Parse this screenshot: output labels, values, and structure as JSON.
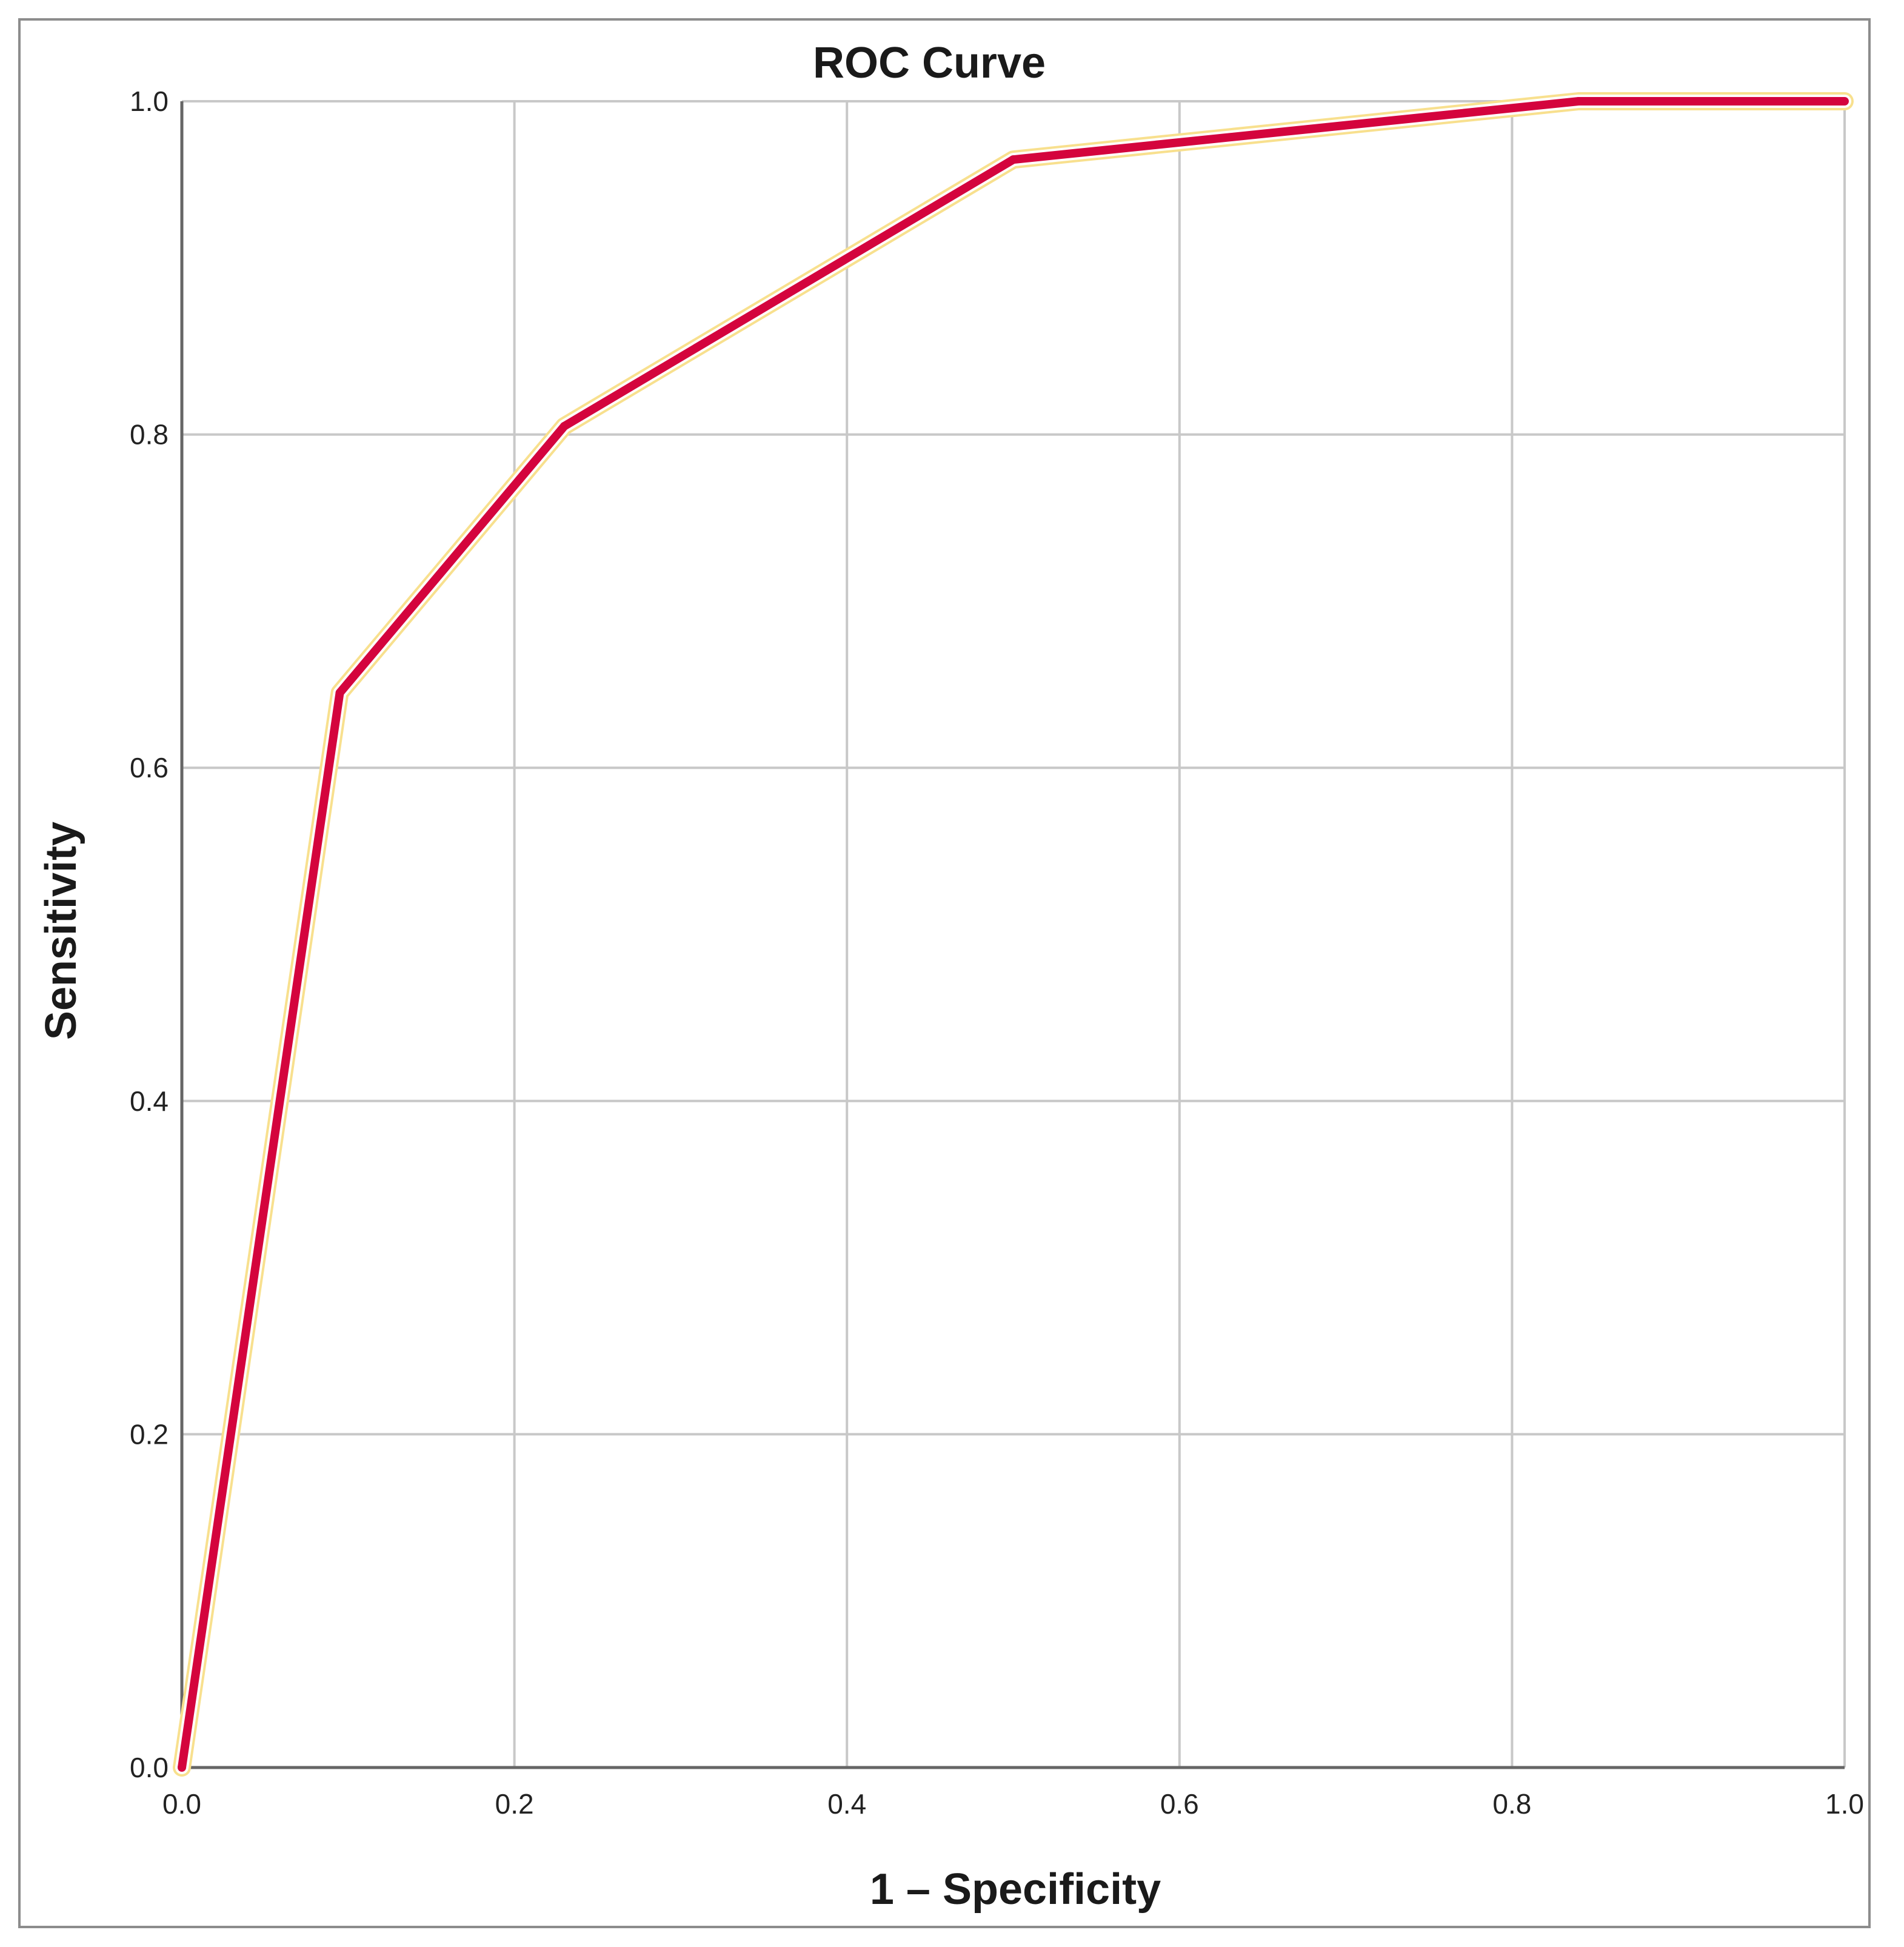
{
  "chart_data": {
    "type": "line",
    "title": "ROC Curve",
    "xlabel": "1 – Specificity",
    "ylabel": "Sensitivity",
    "xlim": [
      0.0,
      1.0
    ],
    "ylim": [
      0.0,
      1.0
    ],
    "x_ticks": [
      "0.0",
      "0.2",
      "0.4",
      "0.6",
      "0.8",
      "1.0"
    ],
    "y_ticks": [
      "0.0",
      "0.2",
      "0.4",
      "0.6",
      "0.8",
      "1.0"
    ],
    "grid": true,
    "legend": "none",
    "series": [
      {
        "x": [
          0.0,
          0.095,
          0.23,
          0.5,
          0.84,
          1.0
        ],
        "y": [
          0.0,
          0.645,
          0.805,
          0.965,
          1.0,
          1.0
        ],
        "color": "#d4043d",
        "halo_color": "#f8e08e"
      }
    ]
  }
}
